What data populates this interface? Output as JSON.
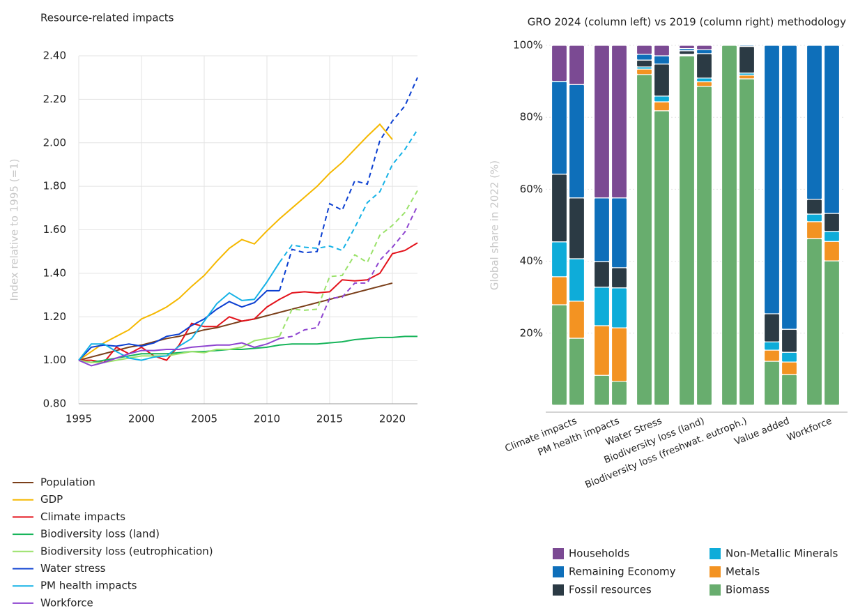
{
  "chart_data": [
    {
      "type": "line",
      "title": "Resource-related impacts",
      "ylabel": "Index relative to 1995 (=1)",
      "x": [
        1995,
        1996,
        1997,
        1998,
        1999,
        2000,
        2001,
        2002,
        2003,
        2004,
        2005,
        2006,
        2007,
        2008,
        2009,
        2010,
        2011,
        2012,
        2013,
        2014,
        2015,
        2016,
        2017,
        2018,
        2019,
        2020,
        2021,
        2022
      ],
      "xlim": [
        1995,
        2022
      ],
      "xticks": [
        1995,
        2000,
        2005,
        2010,
        2015,
        2020
      ],
      "ylim": [
        0.8,
        2.4
      ],
      "yticks": [
        {
          "value": 0.8,
          "label": "0.80"
        },
        {
          "value": 1.0,
          "label": "1.00"
        },
        {
          "value": 1.2,
          "label": "1.20"
        },
        {
          "value": 1.4,
          "label": "1.40"
        },
        {
          "value": 1.6,
          "label": "1.60"
        },
        {
          "value": 1.8,
          "label": "1.80"
        },
        {
          "value": 2.0,
          "label": "2.00"
        },
        {
          "value": 2.2,
          "label": "2.20"
        },
        {
          "value": 2.4,
          "label": "2.40"
        }
      ],
      "grid": true,
      "legend": "bottom",
      "series": [
        {
          "name": "Population",
          "color": "#7b3f1a",
          "values": [
            1.0,
            1.015,
            1.03,
            1.045,
            1.06,
            1.07,
            1.085,
            1.1,
            1.11,
            1.125,
            1.14,
            1.15,
            1.165,
            1.18,
            1.19,
            1.205,
            1.22,
            1.235,
            1.25,
            1.265,
            1.28,
            1.295,
            1.31,
            1.325,
            1.34,
            1.355,
            null,
            null
          ]
        },
        {
          "name": "GDP",
          "color": "#f5b800",
          "values": [
            1.0,
            1.04,
            1.08,
            1.11,
            1.14,
            1.19,
            1.215,
            1.245,
            1.285,
            1.34,
            1.39,
            1.455,
            1.515,
            1.555,
            1.535,
            1.595,
            1.65,
            1.7,
            1.75,
            1.8,
            1.86,
            1.91,
            1.97,
            2.03,
            2.085,
            2.015,
            null,
            null
          ]
        },
        {
          "name": "Climate impacts",
          "color": "#e3121b",
          "values": [
            1.0,
            1.0,
            0.99,
            1.06,
            1.03,
            1.06,
            1.02,
            1.0,
            1.07,
            1.17,
            1.155,
            1.155,
            1.2,
            1.18,
            1.19,
            1.245,
            1.28,
            1.31,
            1.315,
            1.31,
            1.315,
            1.37,
            1.365,
            1.37,
            1.4,
            1.49,
            1.505,
            1.54
          ]
        },
        {
          "name": "Biodiversity loss (land)",
          "color": "#16b45a",
          "values": [
            1.0,
            0.99,
            1.0,
            1.01,
            1.02,
            1.03,
            1.03,
            1.03,
            1.035,
            1.04,
            1.04,
            1.045,
            1.05,
            1.05,
            1.055,
            1.06,
            1.07,
            1.075,
            1.075,
            1.075,
            1.08,
            1.085,
            1.095,
            1.1,
            1.105,
            1.105,
            1.11,
            1.11
          ]
        },
        {
          "name": "Biodiversity loss (eutrophication)",
          "color": "#9be26b",
          "dashed_from": 2011,
          "values": [
            1.0,
            0.99,
            0.99,
            1.0,
            1.01,
            1.02,
            1.02,
            1.02,
            1.03,
            1.04,
            1.035,
            1.05,
            1.05,
            1.06,
            1.09,
            1.1,
            1.11,
            1.235,
            1.23,
            1.235,
            1.385,
            1.39,
            1.485,
            1.45,
            1.575,
            1.62,
            1.68,
            1.78
          ]
        },
        {
          "name": "Water stress",
          "color": "#0b3fd1",
          "dashed_from": 2011,
          "values": [
            1.0,
            1.06,
            1.07,
            1.065,
            1.075,
            1.065,
            1.08,
            1.11,
            1.12,
            1.16,
            1.19,
            1.235,
            1.27,
            1.245,
            1.265,
            1.32,
            1.32,
            1.51,
            1.495,
            1.5,
            1.72,
            1.69,
            1.825,
            1.81,
            2.01,
            2.1,
            2.17,
            2.3
          ]
        },
        {
          "name": "PM health impacts",
          "color": "#15b2e6",
          "dashed_from": 2011,
          "values": [
            1.0,
            1.075,
            1.075,
            1.04,
            1.01,
            1.0,
            1.015,
            1.02,
            1.065,
            1.1,
            1.18,
            1.26,
            1.31,
            1.275,
            1.28,
            1.36,
            1.45,
            1.53,
            1.52,
            1.515,
            1.525,
            1.505,
            1.61,
            1.725,
            1.775,
            1.9,
            1.97,
            2.06
          ]
        },
        {
          "name": "Workforce",
          "color": "#8e44d0",
          "dashed_from": 2011,
          "values": [
            1.0,
            0.975,
            0.99,
            1.01,
            1.03,
            1.045,
            1.045,
            1.05,
            1.05,
            1.06,
            1.065,
            1.07,
            1.07,
            1.08,
            1.06,
            1.075,
            1.1,
            1.11,
            1.14,
            1.15,
            1.285,
            1.29,
            1.355,
            1.355,
            1.46,
            1.52,
            1.59,
            1.71
          ]
        }
      ]
    },
    {
      "type": "bar",
      "stacked": true,
      "title": "GRO 2024 (column left) vs 2019 (column right) methodology",
      "ylabel": "Global share in 2022 (%)",
      "categories": [
        "Climate impacts",
        "PM health impacts",
        "Water Stress",
        "Biodiversity loss (land)",
        "Biodiversity loss (freshwat. eutroph.)",
        "Value added",
        "Workforce"
      ],
      "ylim": [
        0,
        100
      ],
      "yticks": [
        {
          "value": 20,
          "label": "20%"
        },
        {
          "value": 40,
          "label": "40%"
        },
        {
          "value": 60,
          "label": "60%"
        },
        {
          "value": 80,
          "label": "80%"
        },
        {
          "value": 100,
          "label": "100%"
        }
      ],
      "grid": true,
      "legend": "bottom right",
      "series": [
        {
          "name": "Biomass",
          "color": "#68ad6e",
          "values": [
            [
              27.9,
              18.6
            ],
            [
              8.3,
              6.6
            ],
            [
              91.9,
              81.8
            ],
            [
              97.1,
              88.6
            ],
            [
              100,
              90.7
            ],
            [
              12.2,
              8.5
            ],
            [
              46.3,
              40.1
            ]
          ]
        },
        {
          "name": "Metals",
          "color": "#f39322",
          "values": [
            [
              7.8,
              10.3
            ],
            [
              13.8,
              14.9
            ],
            [
              1.5,
              2.5
            ],
            [
              0.2,
              1.3
            ],
            [
              0,
              1.0
            ],
            [
              3.1,
              3.5
            ],
            [
              4.7,
              5.4
            ]
          ]
        },
        {
          "name": "Non-Metallic Minerals",
          "color": "#0eacd9",
          "values": [
            [
              9.7,
              11.8
            ],
            [
              10.7,
              11.1
            ],
            [
              0.6,
              1.6
            ],
            [
              0.2,
              1.0
            ],
            [
              0,
              0.6
            ],
            [
              2.3,
              2.7
            ],
            [
              2.1,
              2.8
            ]
          ]
        },
        {
          "name": "Fossil resources",
          "color": "#2b3a44",
          "values": [
            [
              18.8,
              16.9
            ],
            [
              7.1,
              5.6
            ],
            [
              1.9,
              8.9
            ],
            [
              1.0,
              6.8
            ],
            [
              0,
              7.4
            ],
            [
              7.8,
              6.4
            ],
            [
              4.1,
              5.0
            ]
          ]
        },
        {
          "name": "Remaining Economy",
          "color": "#0e6fba",
          "values": [
            [
              25.8,
              31.5
            ],
            [
              17.7,
              19.4
            ],
            [
              1.6,
              2.3
            ],
            [
              0.6,
              1.1
            ],
            [
              0,
              0.3
            ],
            [
              74.6,
              78.9
            ],
            [
              42.8,
              46.7
            ]
          ]
        },
        {
          "name": "Households",
          "color": "#7b4a93",
          "values": [
            [
              10.0,
              10.9
            ],
            [
              42.4,
              42.4
            ],
            [
              2.5,
              2.9
            ],
            [
              0.9,
              1.2
            ],
            [
              0,
              0
            ],
            [
              0,
              0
            ],
            [
              0,
              0
            ]
          ]
        }
      ]
    }
  ]
}
